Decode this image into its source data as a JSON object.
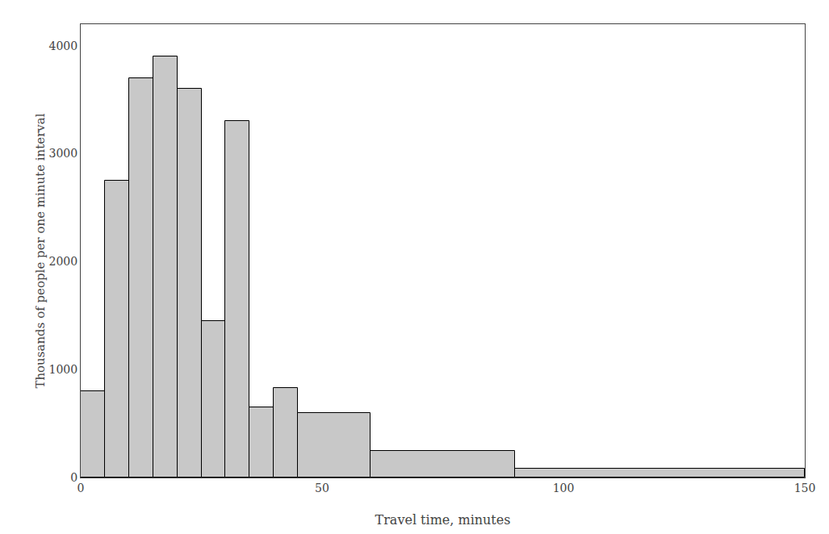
{
  "chart_data": {
    "type": "histogram",
    "bins": [
      0,
      5,
      10,
      15,
      20,
      25,
      30,
      35,
      40,
      45,
      60,
      90,
      150
    ],
    "values": [
      800,
      2750,
      3700,
      3900,
      3600,
      1450,
      3300,
      650,
      830,
      600,
      250,
      80
    ],
    "color": "#c8c8c8",
    "xlabel": "Travel time, minutes",
    "ylabel": "Thousands of people per one minute interval",
    "xlim": [
      0,
      150
    ],
    "ylim": [
      0,
      4200
    ],
    "xticks": [
      0,
      50,
      100,
      150
    ],
    "yticks": [
      0,
      1000,
      2000,
      3000,
      4000
    ],
    "grid": false
  }
}
